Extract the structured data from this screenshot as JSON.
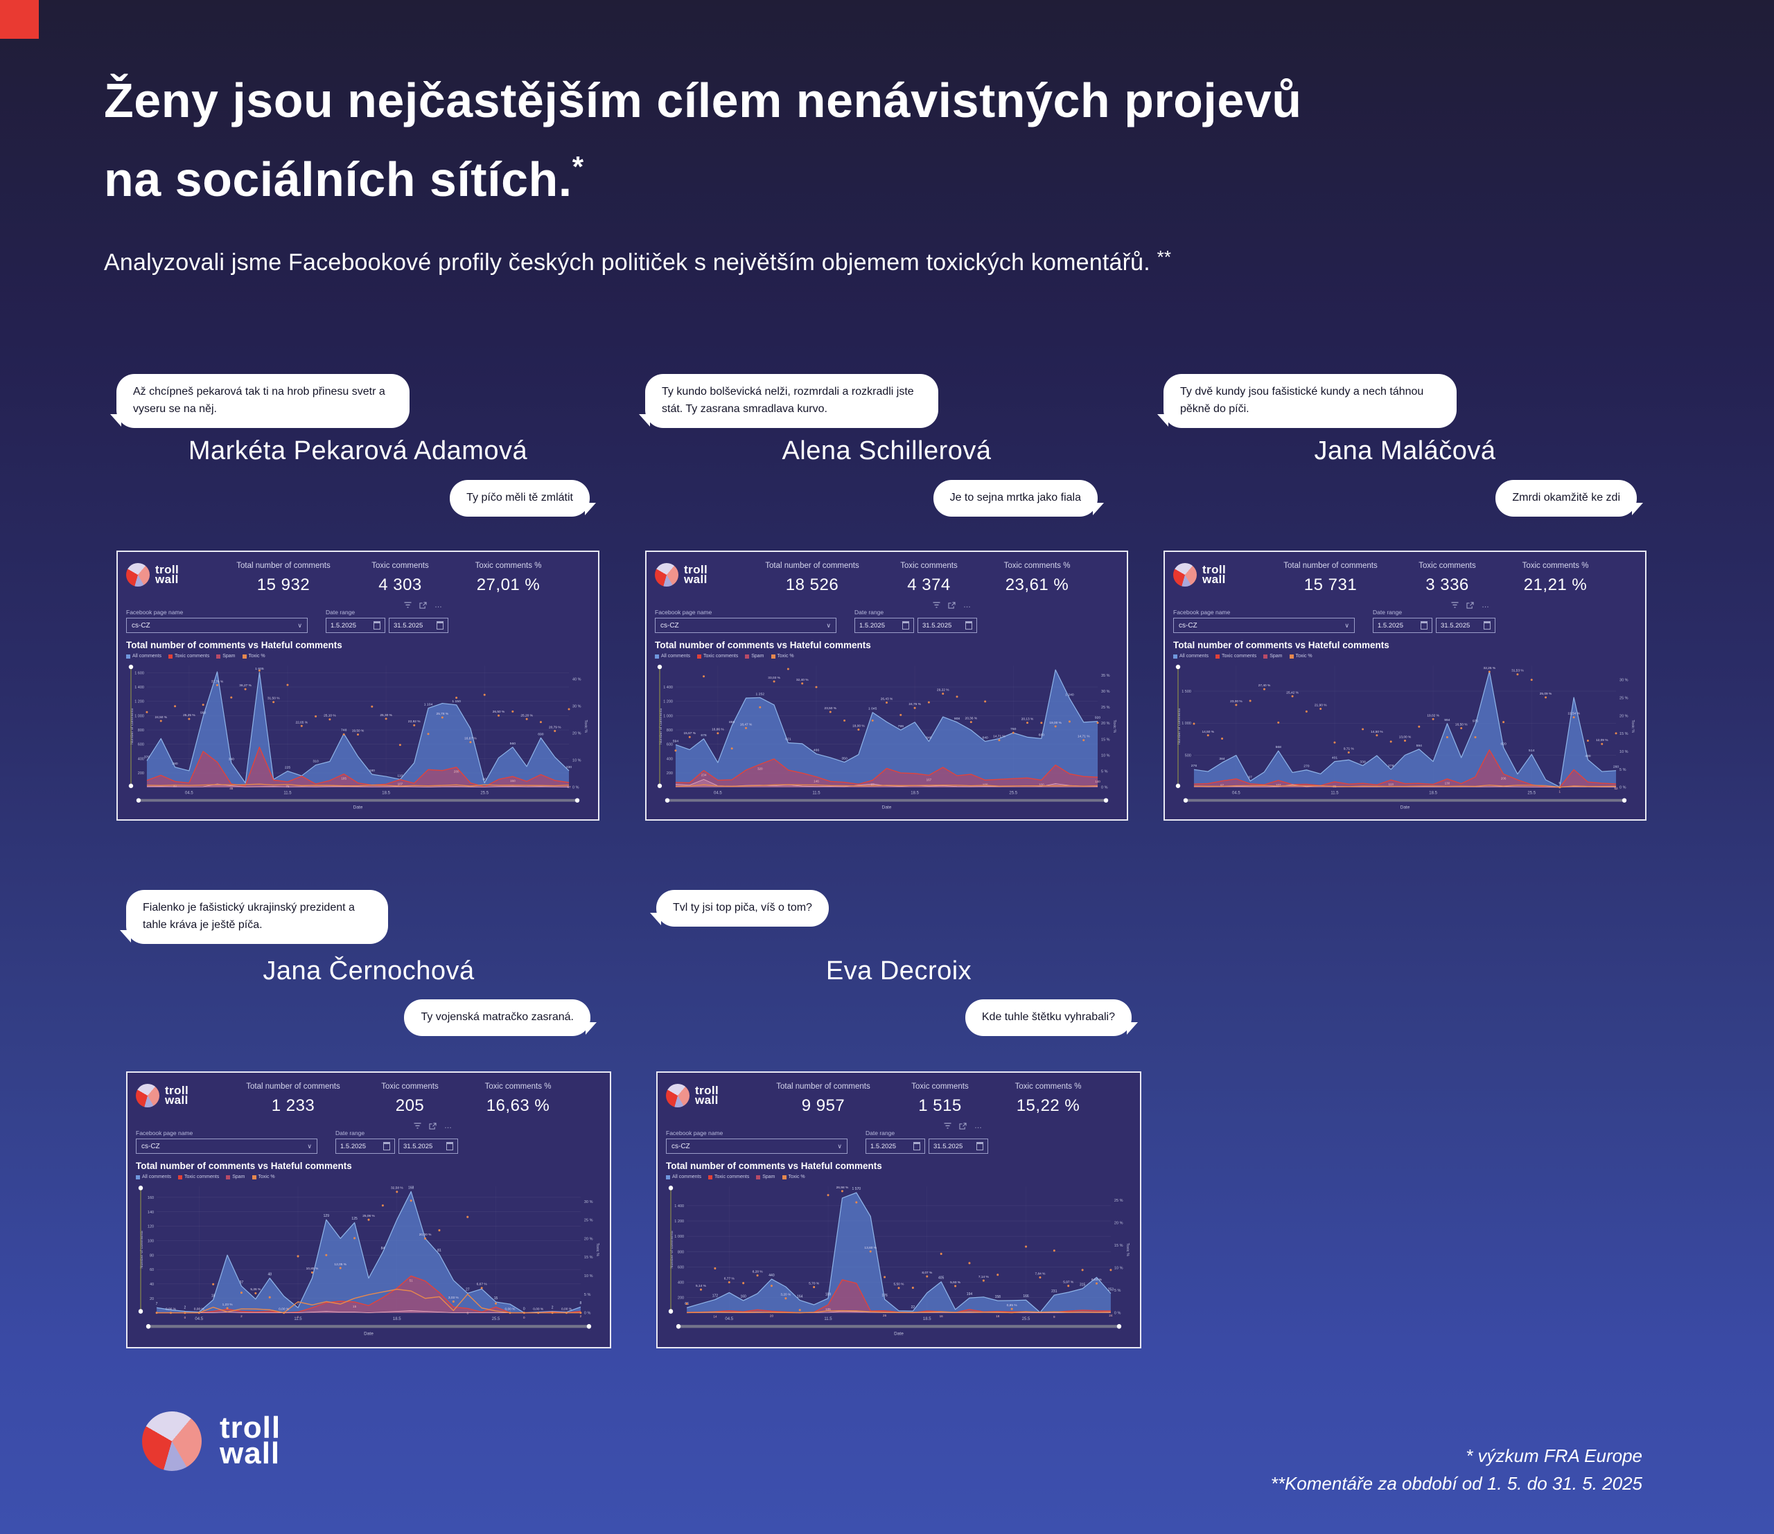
{
  "page": {
    "title_line1": "Ženy jsou nejčastějším cílem nenávistných projevů",
    "title_line2": "na sociálních sítích.",
    "title_sup": "*",
    "subtitle": "Analyzovali jsme Facebookové profily českých političek s největším objemem toxických komentářů.",
    "subtitle_sup": "**",
    "footnote1": "* výzkum FRA Europe",
    "footnote2": "**Komentáře za období od 1. 5. do 31. 5. 2025"
  },
  "brand": {
    "word1": "troll",
    "word2": "wall"
  },
  "dash": {
    "total_label": "Total number of comments",
    "toxic_label": "Toxic comments",
    "toxic_pct_label": "Toxic comments %",
    "fb_page_label": "Facebook page name",
    "fb_page_value": "cs-CZ",
    "date_range_label": "Date range",
    "date_from": "1.5.2025",
    "date_to": "31.5.2025",
    "chart_title": "Total number of comments vs Hateful comments",
    "legend": [
      "All comments",
      "Toxic comments",
      "Spam",
      "Toxic %"
    ],
    "xlabel": "Date",
    "ylabel_left": "Number of comments",
    "ylabel_right": "Toxic %",
    "icons": {
      "ellipsis": "…",
      "chevron": "∨"
    }
  },
  "colors": {
    "background_top": "#201d37",
    "background_bottom": "#3d50ae",
    "accent_red": "#e93a32",
    "panel": "#322d6a",
    "all_comments": "#6f97dd",
    "toxic_comments": "#e04038",
    "spam": "#b84a66",
    "toxic_pct": "#e6884e"
  },
  "politicians": [
    {
      "name": "Markéta Pekarová Adamová",
      "bubble_left": "Až chcípneš pekarová tak ti na hrob přinesu svetr a vyseru se na něj.",
      "bubble_right": "Ty píčo měli tě zmlátit",
      "total": "15 932",
      "toxic": "4 303",
      "toxic_pct": "27,01 %"
    },
    {
      "name": "Alena Schillerová",
      "bubble_left": "Ty kundo bolševická nelži, rozmrdali a rozkradli jste stát. Ty zasrana smradlava kurvo.",
      "bubble_right": "Je to sejna mrtka jako fiala",
      "total": "18 526",
      "toxic": "4 374",
      "toxic_pct": "23,61 %"
    },
    {
      "name": "Jana Maláčová",
      "bubble_left": "Ty dvě kundy jsou fašistické kundy a nech táhnou pěkně do píči.",
      "bubble_right": "Zmrdi okamžitě ke zdi",
      "total": "15 731",
      "toxic": "3 336",
      "toxic_pct": "21,21 %"
    },
    {
      "name": "Jana Černochová",
      "bubble_left": "Fialenko je fašistický ukrajinský prezident a tahle kráva je ještě píča.",
      "bubble_right": "Ty vojenská matračko zasraná.",
      "total": "1 233",
      "toxic": "205",
      "toxic_pct": "16,63 %"
    },
    {
      "name": "Eva Decroix",
      "bubble_left": "Tvl ty jsi top piča, víš o tom?",
      "bubble_right": "Kde tuhle štětku vyhrabali?",
      "total": "9 957",
      "toxic": "1 515",
      "toxic_pct": "15,22 %"
    }
  ],
  "chart_data": [
    {
      "type": "area",
      "politician": "Markéta Pekarová Adamová",
      "title": "Total number of comments vs Hateful comments",
      "xlabel": "Date",
      "ylabel": "Number of comments",
      "ylabel_right": "Toxic %",
      "x_days_may_2025": [
        1,
        2,
        3,
        4,
        5,
        6,
        7,
        8,
        9,
        10,
        11,
        12,
        13,
        14,
        15,
        16,
        17,
        18,
        19,
        20,
        21,
        22,
        23,
        24,
        25,
        26,
        27,
        28,
        29,
        30,
        31
      ],
      "x_ticks": [
        {
          "i": 3,
          "label": "04.5"
        },
        {
          "i": 10,
          "label": "11.5"
        },
        {
          "i": 17,
          "label": "18.5"
        },
        {
          "i": 24,
          "label": "25.5"
        }
      ],
      "ymax": 1700,
      "yticks": [
        200,
        400,
        600,
        800,
        1000,
        1200,
        1400,
        1600
      ],
      "pct_max": 45,
      "pct_ticks": [
        0,
        10,
        20,
        30,
        40
      ],
      "all": [
        370,
        680,
        280,
        230,
        990,
        1612,
        340,
        60,
        1605,
        110,
        225,
        160,
        310,
        360,
        748,
        430,
        180,
        150,
        110,
        340,
        1104,
        1172,
        1150,
        820,
        60,
        410,
        560,
        290,
        690,
        420,
        230
      ],
      "toxic": [
        95,
        167,
        80,
        60,
        501,
        350,
        45,
        20,
        560,
        100,
        75,
        154,
        45,
        94,
        185,
        60,
        31,
        43,
        107,
        55,
        246,
        233,
        280,
        60,
        6,
        110,
        150,
        82,
        176,
        95,
        67
      ],
      "spam": [
        10,
        12,
        8,
        6,
        7,
        45,
        20,
        5,
        8,
        10,
        6,
        8,
        5,
        9,
        12,
        8,
        6,
        7,
        9,
        6,
        2,
        8,
        10,
        5,
        3,
        9,
        14,
        7,
        10,
        6,
        4
      ],
      "pct": [
        27.78,
        24.5,
        29.96,
        25.25,
        30.5,
        37.76,
        33.2,
        36.27,
        43.13,
        31.5,
        37.82,
        22.65,
        26.2,
        25.1,
        19.52,
        19.5,
        29.81,
        25.3,
        15.64,
        22.92,
        19.71,
        25.78,
        33.1,
        16.67,
        34.18,
        26.5,
        27.99,
        25.2,
        24.1,
        20.79,
        28.88
      ]
    },
    {
      "type": "area",
      "politician": "Alena Schillerová",
      "title": "Total number of comments vs Hateful comments",
      "xlabel": "Date",
      "ylabel": "Number of comments",
      "ylabel_right": "Toxic %",
      "x_days_may_2025": [
        1,
        2,
        3,
        4,
        5,
        6,
        7,
        8,
        9,
        10,
        11,
        12,
        13,
        14,
        15,
        16,
        17,
        18,
        19,
        20,
        21,
        22,
        23,
        24,
        25,
        26,
        27,
        28,
        29,
        30,
        31
      ],
      "x_ticks": [
        {
          "i": 3,
          "label": "04.5"
        },
        {
          "i": 10,
          "label": "11.5"
        },
        {
          "i": 17,
          "label": "18.5"
        },
        {
          "i": 24,
          "label": "25.5"
        }
      ],
      "ymax": 1700,
      "yticks": [
        200,
        400,
        600,
        800,
        1000,
        1200,
        1400
      ],
      "pct_max": 38,
      "pct_ticks": [
        0,
        5,
        10,
        15,
        20,
        25,
        30,
        35
      ],
      "all": [
        594,
        525,
        676,
        344,
        859,
        1245,
        1252,
        1150,
        621,
        608,
        466,
        414,
        350,
        456,
        1045,
        913,
        799,
        909,
        640,
        983,
        908,
        798,
        640,
        680,
        760,
        700,
        680,
        1640,
        1240,
        908,
        920
      ],
      "toxic": [
        68,
        62,
        234,
        98,
        104,
        239,
        320,
        395,
        240,
        197,
        146,
        81,
        69,
        43,
        97,
        263,
        200,
        193,
        167,
        278,
        161,
        181,
        100,
        110,
        120,
        130,
        100,
        310,
        187,
        150,
        140
      ],
      "spam": [
        40,
        30,
        110,
        20,
        15,
        25,
        30,
        20,
        35,
        15,
        10,
        12,
        8,
        30,
        45,
        20,
        12,
        25,
        15,
        20,
        10,
        8,
        12,
        10,
        15,
        20,
        12,
        50,
        25,
        15,
        12
      ],
      "pct": [
        11.45,
        15.67,
        34.62,
        16.86,
        12.11,
        18.47,
        24.96,
        33.03,
        36.91,
        32.4,
        31.28,
        23.5,
        20.82,
        18.0,
        20.82,
        26.43,
        22.56,
        24.76,
        26.5,
        29.22,
        28.28,
        20.36,
        26.79,
        14.71,
        17.0,
        20.13,
        20.1,
        19.0,
        20.5,
        14.71,
        20.13
      ]
    },
    {
      "type": "area",
      "politician": "Jana Maláčová",
      "title": "Total number of comments vs Hateful comments",
      "xlabel": "Date",
      "ylabel": "Number of comments",
      "ylabel_right": "Toxic %",
      "x_days_may_2025": [
        1,
        2,
        3,
        4,
        5,
        6,
        7,
        8,
        9,
        10,
        11,
        12,
        13,
        14,
        15,
        16,
        17,
        18,
        19,
        20,
        21,
        22,
        23,
        24,
        25,
        26,
        27,
        28,
        29,
        30,
        31
      ],
      "x_ticks": [
        {
          "i": 3,
          "label": "04.5"
        },
        {
          "i": 10,
          "label": "11.5"
        },
        {
          "i": 17,
          "label": "18.5"
        },
        {
          "i": 24,
          "label": "25.5"
        }
      ],
      "ymax": 1900,
      "yticks": [
        500,
        1000,
        1500
      ],
      "pct_max": 34,
      "pct_ticks": [
        0,
        5,
        10,
        15,
        20,
        25,
        30
      ],
      "all": [
        276,
        245,
        384,
        498,
        97,
        238,
        568,
        230,
        270,
        208,
        401,
        427,
        338,
        494,
        278,
        501,
        594,
        402,
        994,
        462,
        975,
        1809,
        620,
        206,
        514,
        116,
        5,
        1402,
        430,
        245,
        260
      ],
      "toxic": [
        49,
        57,
        97,
        130,
        53,
        40,
        107,
        42,
        46,
        26,
        85,
        49,
        61,
        37,
        113,
        56,
        60,
        45,
        130,
        56,
        160,
        583,
        206,
        116,
        40,
        4,
        1,
        274,
        81,
        62,
        52
      ],
      "spam": [
        15,
        10,
        12,
        14,
        8,
        6,
        10,
        42,
        8,
        26,
        6,
        8,
        10,
        6,
        12,
        8,
        10,
        6,
        8,
        10,
        6,
        8,
        10,
        6,
        4,
        2,
        0,
        10,
        6,
        4,
        4
      ],
      "pct": [
        17.75,
        14.5,
        13.59,
        23.0,
        24.13,
        27.4,
        18.06,
        25.42,
        21.15,
        21.9,
        12.5,
        9.71,
        16.21,
        14.5,
        12.75,
        13.0,
        16.93,
        19.02,
        13.98,
        16.5,
        13.98,
        32.25,
        18.21,
        31.53,
        30.0,
        25.09,
        0,
        19.54,
        13.0,
        12.09,
        15.07
      ]
    },
    {
      "type": "area",
      "politician": "Jana Černochová",
      "title": "Total number of comments vs Hateful comments",
      "xlabel": "Date",
      "ylabel": "Number of comments",
      "ylabel_right": "Toxic %",
      "x_days_may_2025": [
        1,
        2,
        3,
        4,
        5,
        6,
        7,
        8,
        9,
        10,
        11,
        12,
        13,
        14,
        15,
        16,
        17,
        18,
        19,
        20,
        21,
        22,
        23,
        24,
        25,
        26,
        27,
        28,
        29,
        30,
        31
      ],
      "x_ticks": [
        {
          "i": 3,
          "label": "04.5"
        },
        {
          "i": 10,
          "label": "11.5"
        },
        {
          "i": 17,
          "label": "18.5"
        },
        {
          "i": 24,
          "label": "25.5"
        }
      ],
      "ymax": 175,
      "yticks": [
        20,
        40,
        60,
        80,
        100,
        120,
        140,
        160
      ],
      "pct_max": 34,
      "pct_ticks": [
        0,
        5,
        10,
        15,
        20,
        25,
        30
      ],
      "all": [
        7,
        4,
        2,
        1,
        18,
        80,
        37,
        19,
        48,
        23,
        7,
        48,
        129,
        103,
        125,
        48,
        84,
        129,
        168,
        103,
        81,
        45,
        27,
        33,
        15,
        12,
        0,
        1,
        2,
        1,
        8
      ],
      "toxic": [
        0,
        0,
        0,
        0,
        2,
        5,
        2,
        1,
        2,
        0,
        1,
        7,
        14,
        16,
        15,
        10,
        21,
        34,
        51,
        44,
        28,
        8,
        6,
        1,
        8,
        0,
        0,
        0,
        1,
        0,
        2
      ],
      "spam": [
        0,
        0,
        0,
        0,
        0,
        1,
        0,
        0,
        0,
        0,
        0,
        1,
        2,
        1,
        1,
        0,
        1,
        2,
        3,
        2,
        1,
        0,
        0,
        0,
        0,
        0,
        0,
        0,
        0,
        0,
        0
      ],
      "pct": [
        0,
        0,
        0,
        0,
        7.69,
        1.23,
        5.41,
        5.26,
        4.17,
        0,
        15.22,
        10.85,
        15.53,
        12.05,
        20.09,
        25.06,
        28.9,
        32.58,
        30.2,
        20.0,
        22.22,
        3.03,
        25.81,
        6.67,
        2.5,
        0,
        0,
        0,
        0,
        0,
        0
      ]
    },
    {
      "type": "area",
      "politician": "Eva Decroix",
      "title": "Total number of comments vs Hateful comments",
      "xlabel": "Date",
      "ylabel": "Number of comments",
      "ylabel_right": "Toxic %",
      "x_days_may_2025": [
        1,
        2,
        3,
        4,
        5,
        6,
        7,
        8,
        9,
        10,
        11,
        12,
        13,
        14,
        15,
        16,
        17,
        18,
        19,
        20,
        21,
        22,
        23,
        24,
        25,
        26,
        27,
        28,
        29,
        30,
        31
      ],
      "x_ticks": [
        {
          "i": 3,
          "label": "04.5"
        },
        {
          "i": 10,
          "label": "11.5"
        },
        {
          "i": 17,
          "label": "18.5"
        },
        {
          "i": 24,
          "label": "25.5"
        }
      ],
      "ymax": 1650,
      "yticks": [
        200,
        400,
        600,
        800,
        1000,
        1200,
        1400
      ],
      "pct_max": 28,
      "pct_ticks": [
        0,
        5,
        10,
        15,
        20,
        25
      ],
      "all": [
        66,
        120,
        172,
        264,
        160,
        251,
        440,
        340,
        164,
        105,
        189,
        1499,
        1570,
        1260,
        176,
        26,
        22,
        260,
        405,
        43,
        194,
        206,
        158,
        160,
        166,
        5,
        231,
        268,
        315,
        463,
        253
      ],
      "toxic": [
        5,
        8,
        14,
        26,
        13,
        39,
        20,
        11,
        1,
        6,
        105,
        431,
        385,
        24,
        26,
        8,
        2,
        22,
        16,
        3,
        43,
        12,
        18,
        12,
        14,
        1,
        9,
        21,
        34,
        26,
        24
      ],
      "spam": [
        1,
        2,
        3,
        2,
        1,
        2,
        3,
        2,
        1,
        1,
        5,
        20,
        15,
        5,
        2,
        1,
        1,
        2,
        3,
        1,
        2,
        3,
        2,
        1,
        2,
        0,
        1,
        2,
        3,
        2,
        2
      ],
      "pct": [
        2.0,
        5.14,
        9.85,
        6.77,
        6.58,
        8.28,
        5.98,
        3.2,
        0.6,
        5.7,
        26.1,
        26.98,
        24.5,
        13.6,
        7.92,
        5.5,
        5.55,
        8.07,
        13.07,
        5.93,
        11.02,
        7.14,
        8.43,
        0.85,
        14.68,
        7.84,
        13.79,
        5.97,
        9.49,
        6.5,
        9.49
      ]
    }
  ]
}
